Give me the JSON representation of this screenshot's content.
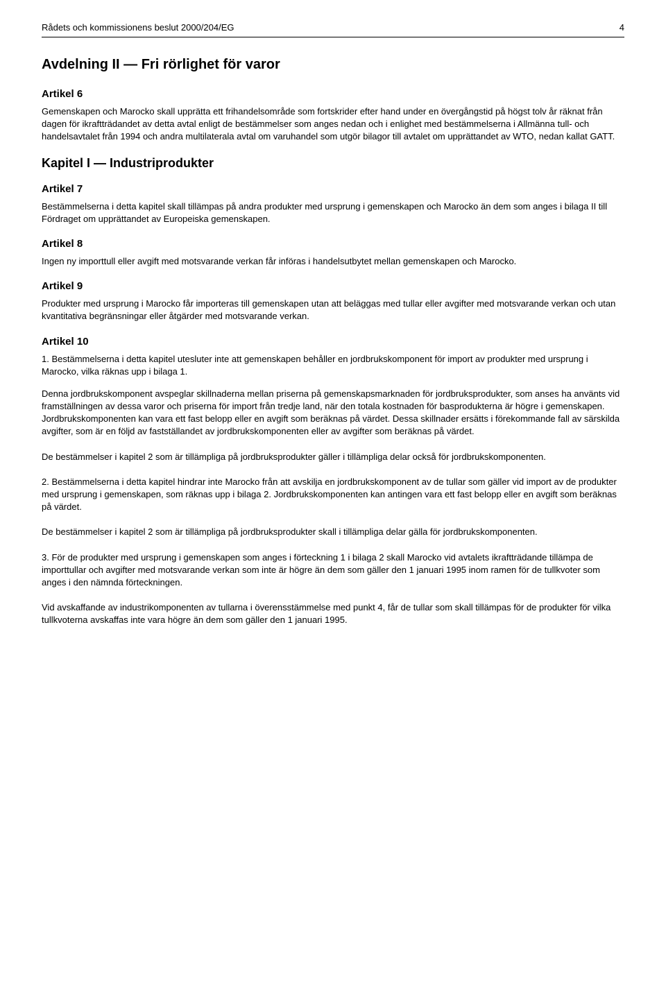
{
  "header": {
    "doc_title": "Rådets och kommissionens beslut 2000/204/EG",
    "page_number": "4"
  },
  "section_title": "Avdelning II — Fri rörlighet för varor",
  "articles": [
    {
      "title": "Artikel 6",
      "paragraphs": [
        "Gemenskapen och Marocko skall upprätta ett frihandelsområde som fortskrider efter hand under en övergångstid på högst tolv år räknat från dagen för ikraftträdandet av detta avtal enligt de bestämmelser som anges nedan och i enlighet med bestämmelserna i Allmänna tull- och handelsavtalet från 1994 och andra multilaterala avtal om varuhandel som utgör bilagor till avtalet om upprättandet av WTO, nedan kallat GATT."
      ]
    }
  ],
  "chapter_title": "Kapitel I — Industriprodukter",
  "chapter_articles": [
    {
      "title": "Artikel 7",
      "paragraphs": [
        "Bestämmelserna i detta kapitel skall tillämpas på andra produkter med ursprung i gemenskapen och Marocko än dem som anges i bilaga II till Fördraget om upprättandet av Europeiska gemenskapen."
      ]
    },
    {
      "title": "Artikel 8",
      "paragraphs": [
        "Ingen ny importtull eller avgift med motsvarande verkan får införas i handelsutbytet mellan gemenskapen och Marocko."
      ]
    },
    {
      "title": "Artikel 9",
      "paragraphs": [
        "Produkter med ursprung i Marocko får importeras till gemenskapen utan att beläggas med tullar eller avgifter med motsvarande verkan och utan kvantitativa begränsningar eller åtgärder med motsvarande verkan."
      ]
    },
    {
      "title": "Artikel 10",
      "paragraphs": [
        "1. Bestämmelserna i detta kapitel utesluter inte att gemenskapen behåller en jordbrukskomponent för import av produkter med ursprung i Marocko, vilka räknas upp i bilaga 1.",
        "Denna jordbrukskomponent avspeglar skillnaderna mellan priserna på gemenskapsmarknaden för jordbruksprodukter, som anses ha använts vid framställningen av dessa varor och priserna för import från tredje land, när den totala kostnaden för basprodukterna är högre i gemenskapen. Jordbrukskomponenten kan vara ett fast belopp eller en avgift som beräknas på värdet. Dessa skillnader ersätts i förekommande fall av särskilda avgifter, som är en följd av fastställandet av jordbrukskomponenten eller av avgifter som beräknas på värdet.",
        "De bestämmelser i kapitel 2 som är tillämpliga på jordbruksprodukter gäller i tillämpliga delar också för jordbrukskomponenten.",
        "2. Bestämmelserna i detta kapitel hindrar inte Marocko från att avskilja en jordbrukskomponent av de tullar som gäller vid import av de produkter med ursprung i gemenskapen, som räknas upp i bilaga 2. Jordbrukskomponenten kan antingen vara ett fast belopp eller en avgift som beräknas på värdet.",
        "De bestämmelser i kapitel 2 som är tillämpliga på jordbruksprodukter skall i tillämpliga delar gälla för jordbrukskomponenten.",
        "3. För de produkter med ursprung i gemenskapen som anges i förteckning 1 i bilaga 2 skall Marocko vid avtalets ikraftträdande tillämpa de importtullar och avgifter med motsvarande verkan som inte är högre än dem som gäller den 1 januari 1995 inom ramen för de tullkvoter som anges i den nämnda förteckningen.",
        "Vid avskaffande av industrikomponenten av tullarna i överensstämmelse med punkt 4, får de tullar som skall tillämpas för de produkter för vilka tullkvoterna avskaffas inte vara högre än dem som gäller den 1 januari 1995."
      ]
    }
  ]
}
